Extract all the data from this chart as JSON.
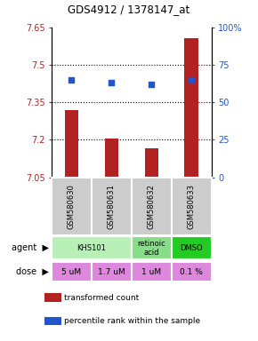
{
  "title": "GDS4912 / 1378147_at",
  "samples": [
    "GSM580630",
    "GSM580631",
    "GSM580632",
    "GSM580633"
  ],
  "bar_values": [
    7.32,
    7.205,
    7.165,
    7.605
  ],
  "bar_base": 7.05,
  "percentile_values": [
    65,
    63,
    62,
    65
  ],
  "ylim_left": [
    7.05,
    7.65
  ],
  "ylim_right": [
    0,
    100
  ],
  "yticks_left": [
    7.05,
    7.2,
    7.35,
    7.5,
    7.65
  ],
  "yticks_right": [
    0,
    25,
    50,
    75,
    100
  ],
  "hlines": [
    7.5,
    7.35,
    7.2
  ],
  "bar_color": "#B22222",
  "dot_color": "#2255cc",
  "agent_groups": [
    {
      "label": "KHS101",
      "cols": [
        0,
        1
      ],
      "color": "#b8f0b8"
    },
    {
      "label": "retinoic\nacid",
      "cols": [
        2
      ],
      "color": "#88dd88"
    },
    {
      "label": "DMSO",
      "cols": [
        3
      ],
      "color": "#22cc22"
    }
  ],
  "dose_labels": [
    "5 uM",
    "1.7 uM",
    "1 uM",
    "0.1 %"
  ],
  "dose_color": "#dd88dd",
  "sample_bg_color": "#cccccc",
  "legend_bar_label": "transformed count",
  "legend_dot_label": "percentile rank within the sample",
  "xlabel_agent": "agent",
  "xlabel_dose": "dose"
}
